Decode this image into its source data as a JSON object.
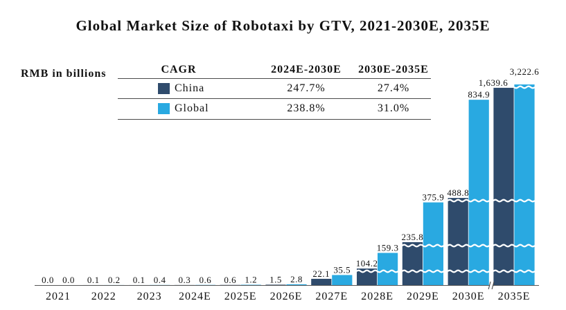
{
  "chart_data": {
    "type": "bar",
    "title": "Global Market Size of Robotaxi by GTV, 2021-2030E, 2035E",
    "ylabel": "RMB in billions",
    "categories": [
      "2021",
      "2022",
      "2023",
      "2024E",
      "2025E",
      "2026E",
      "2027E",
      "2028E",
      "2029E",
      "2030E",
      "2035E"
    ],
    "series": [
      {
        "name": "China",
        "color": "#2F4B6C",
        "values": [
          0.0,
          0.1,
          0.1,
          0.3,
          0.6,
          1.5,
          22.1,
          104.2,
          235.8,
          488.8,
          1639.6
        ]
      },
      {
        "name": "Global",
        "color": "#29A9E1",
        "values": [
          0.0,
          0.2,
          0.4,
          0.6,
          1.2,
          2.8,
          35.5,
          159.3,
          375.9,
          834.9,
          3222.6
        ]
      }
    ],
    "y_axis_broken": true,
    "x_axis_broken": true,
    "grid": false,
    "legend_position": "top-left"
  },
  "cagr_table": {
    "header": "CAGR",
    "columns": [
      "2024E-2030E",
      "2030E-2035E"
    ],
    "rows": [
      [
        "247.7%",
        "27.4%"
      ],
      [
        "238.8%",
        "31.0%"
      ]
    ]
  }
}
